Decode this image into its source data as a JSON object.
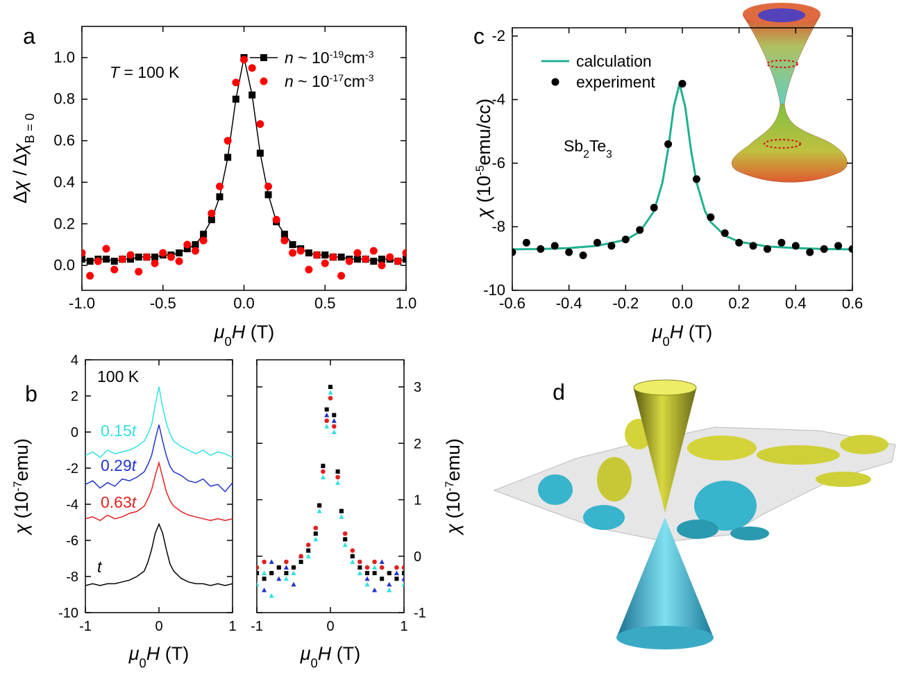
{
  "chart_data": [
    {
      "type": "scatter",
      "panel_label": "a",
      "x": [
        -1,
        -0.95,
        -0.9,
        -0.85,
        -0.8,
        -0.75,
        -0.7,
        -0.65,
        -0.6,
        -0.55,
        -0.5,
        -0.45,
        -0.4,
        -0.35,
        -0.3,
        -0.25,
        -0.2,
        -0.15,
        -0.1,
        -0.05,
        0,
        0.05,
        0.1,
        0.15,
        0.2,
        0.25,
        0.3,
        0.35,
        0.4,
        0.45,
        0.5,
        0.55,
        0.6,
        0.65,
        0.7,
        0.75,
        0.8,
        0.85,
        0.9,
        0.95,
        1
      ],
      "series": [
        {
          "name": [
            {
              "it": "n"
            },
            " ~ 10",
            {
              "sup": "-19"
            },
            "cm",
            {
              "sup": "-3"
            }
          ],
          "color": "#000000",
          "marker": "square",
          "line": true,
          "values": [
            0.03,
            0.02,
            0.03,
            0.03,
            0.02,
            0.03,
            0.03,
            0.04,
            0.04,
            0.04,
            0.05,
            0.05,
            0.06,
            0.08,
            0.1,
            0.15,
            0.22,
            0.33,
            0.52,
            0.8,
            1.0,
            0.82,
            0.54,
            0.34,
            0.21,
            0.15,
            0.1,
            0.08,
            0.06,
            0.05,
            0.05,
            0.04,
            0.04,
            0.03,
            0.03,
            0.03,
            0.02,
            0.03,
            0.03,
            0.02,
            0.03
          ]
        },
        {
          "name": [
            {
              "it": "n"
            },
            " ~ 10",
            {
              "sup": "-17"
            },
            "cm",
            {
              "sup": "-3"
            }
          ],
          "color": "#ff0000",
          "marker": "circle",
          "line": false,
          "values": [
            0.06,
            -0.05,
            0.02,
            0.08,
            -0.02,
            0.03,
            0.05,
            -0.03,
            0.04,
            0.01,
            0.06,
            0.04,
            0.02,
            0.1,
            0.07,
            0.12,
            0.25,
            0.38,
            0.6,
            0.88,
            0.99,
            0.95,
            0.68,
            0.38,
            0.22,
            0.12,
            0.06,
            0.07,
            -0.02,
            0.05,
            0.01,
            0.04,
            -0.05,
            0.02,
            0.06,
            0.03,
            0.07,
            0.0,
            0.04,
            0.02,
            0.06
          ]
        }
      ],
      "xlim": [
        -1,
        1
      ],
      "ylim": [
        -0.12,
        1.15
      ],
      "xticks": [
        {
          "value": -1,
          "label": "-1.0"
        },
        -0.5,
        {
          "value": 0,
          "label": "0.0"
        },
        0.5,
        {
          "value": 1,
          "label": "1.0"
        }
      ],
      "yticks": [
        {
          "value": 0,
          "label": "0.0"
        },
        0.2,
        0.4,
        0.6,
        0.8,
        {
          "value": 1,
          "label": "1.0"
        }
      ],
      "x_label": [
        {
          "it": "μ"
        },
        {
          "sub": "0"
        },
        {
          "it": "H"
        },
        " (T)"
      ],
      "y_label": [
        "Δ",
        {
          "it": "χ"
        },
        " / Δ",
        {
          "it": "χ"
        },
        {
          "sub": "B = 0"
        }
      ],
      "annotation": [
        {
          "it": "T"
        },
        " = 100 K"
      ],
      "legend": "upper right"
    },
    {
      "type": "line",
      "panel_label": "b",
      "x": [
        -1,
        -0.9,
        -0.8,
        -0.7,
        -0.6,
        -0.5,
        -0.4,
        -0.3,
        -0.2,
        -0.15,
        -0.1,
        -0.05,
        0,
        0.05,
        0.1,
        0.15,
        0.2,
        0.3,
        0.4,
        0.5,
        0.6,
        0.7,
        0.8,
        0.9,
        1
      ],
      "series": [
        {
          "name": [
            "0.15",
            {
              "it": "t"
            }
          ],
          "color": "#33e0e0",
          "line": true,
          "values": [
            -1.3,
            -1.1,
            -1.4,
            -1.0,
            -1.2,
            -1.1,
            -1.0,
            -0.8,
            -0.5,
            -0.1,
            0.4,
            1.5,
            2.5,
            1.4,
            0.5,
            -0.1,
            -0.5,
            -0.8,
            -1.0,
            -1.2,
            -1.0,
            -1.3,
            -1.1,
            -1.2,
            -1.4
          ]
        },
        {
          "name": [
            "0.29",
            {
              "it": "t"
            }
          ],
          "color": "#2233cc",
          "line": true,
          "values": [
            -2.9,
            -2.7,
            -3.1,
            -2.8,
            -3.0,
            -2.6,
            -2.7,
            -2.5,
            -2.2,
            -1.8,
            -1.3,
            -0.4,
            0.4,
            -0.5,
            -1.3,
            -1.9,
            -2.2,
            -2.4,
            -2.7,
            -2.8,
            -2.6,
            -3.0,
            -2.9,
            -3.3,
            -2.8
          ]
        },
        {
          "name": [
            "0.63",
            {
              "it": "t"
            }
          ],
          "color": "#e02020",
          "line": true,
          "values": [
            -4.8,
            -4.7,
            -4.9,
            -4.6,
            -4.8,
            -4.7,
            -4.5,
            -4.4,
            -4.1,
            -3.7,
            -3.2,
            -2.4,
            -1.7,
            -2.5,
            -3.3,
            -3.8,
            -4.1,
            -4.4,
            -4.6,
            -4.7,
            -4.8,
            -4.9,
            -4.8,
            -4.9,
            -4.8
          ]
        },
        {
          "name": [
            {
              "it": "t"
            }
          ],
          "color": "#000000",
          "line": true,
          "values": [
            -8.5,
            -8.4,
            -8.5,
            -8.4,
            -8.4,
            -8.3,
            -8.2,
            -8.0,
            -7.7,
            -7.2,
            -6.5,
            -5.6,
            -5.1,
            -5.6,
            -6.5,
            -7.3,
            -7.7,
            -8.1,
            -8.3,
            -8.4,
            -8.4,
            -8.5,
            -8.4,
            -8.5,
            -8.4
          ]
        }
      ],
      "xlim": [
        -1,
        1
      ],
      "ylim": [
        -10,
        4
      ],
      "xticks": [
        -1,
        0,
        1
      ],
      "yticks": [
        -10,
        -8,
        -6,
        -4,
        -2,
        0,
        2,
        4
      ],
      "x_label": [
        {
          "it": "μ"
        },
        {
          "sub": "0"
        },
        {
          "it": "H"
        },
        " (T)"
      ],
      "y_label": [
        {
          "it": "χ"
        },
        " (10",
        {
          "sup": "-7"
        },
        "emu)"
      ],
      "annotation": [
        "100 K"
      ]
    },
    {
      "type": "scatter",
      "x": [
        -1,
        -0.9,
        -0.8,
        -0.7,
        -0.6,
        -0.5,
        -0.4,
        -0.3,
        -0.2,
        -0.15,
        -0.1,
        -0.05,
        0,
        0.05,
        0.1,
        0.15,
        0.2,
        0.3,
        0.4,
        0.5,
        0.6,
        0.7,
        0.8,
        0.9,
        1
      ],
      "series": [
        {
          "color": "#33e0e0",
          "marker": "triangle",
          "line": false,
          "values": [
            -0.5,
            -0.3,
            -0.7,
            -0.2,
            -0.4,
            -0.3,
            -0.1,
            0.0,
            0.3,
            0.8,
            1.4,
            2.3,
            2.9,
            2.2,
            1.3,
            0.7,
            0.2,
            -0.1,
            -0.3,
            -0.5,
            -0.2,
            -0.4,
            -0.6,
            -0.3,
            -0.5
          ]
        },
        {
          "color": "#2233cc",
          "marker": "triangle",
          "line": false,
          "values": [
            -0.3,
            -0.6,
            -0.1,
            -0.4,
            -0.2,
            -0.5,
            0.0,
            0.1,
            0.4,
            0.9,
            1.6,
            2.5,
            3.0,
            2.4,
            1.5,
            0.8,
            0.3,
            0.0,
            -0.2,
            -0.4,
            -0.6,
            -0.1,
            -0.5,
            -0.3,
            -0.4
          ]
        },
        {
          "color": "#e02020",
          "marker": "circle",
          "line": false,
          "values": [
            -0.2,
            -0.1,
            -0.3,
            -0.2,
            -0.1,
            -0.2,
            0.0,
            0.2,
            0.5,
            0.9,
            1.5,
            2.4,
            2.8,
            2.3,
            1.4,
            0.8,
            0.4,
            0.1,
            -0.1,
            -0.2,
            -0.1,
            -0.2,
            -0.3,
            -0.2,
            -0.2
          ]
        },
        {
          "color": "#000000",
          "marker": "square",
          "line": false,
          "values": [
            -0.3,
            -0.4,
            -0.3,
            -0.2,
            -0.3,
            -0.2,
            -0.1,
            0.1,
            0.4,
            0.9,
            1.6,
            2.6,
            3.0,
            2.5,
            1.5,
            0.8,
            0.3,
            0.0,
            -0.2,
            -0.3,
            -0.3,
            -0.4,
            -0.3,
            -0.4,
            -0.3
          ]
        }
      ],
      "xlim": [
        -1,
        1
      ],
      "ylim": [
        -1,
        3.48
      ],
      "xticks": [
        -1,
        0,
        1
      ],
      "yticks": [
        -1,
        0,
        1,
        2,
        3
      ],
      "y_axis_side": "right",
      "x_label": [
        {
          "it": "μ"
        },
        {
          "sub": "0"
        },
        {
          "it": "H"
        },
        " (T)"
      ],
      "y_label": [
        {
          "it": "χ"
        },
        " (10",
        {
          "sup": "-7"
        },
        "emu)"
      ]
    },
    {
      "type": "scatter",
      "panel_label": "c",
      "series": [
        {
          "name": "calculation",
          "color": "#20b090",
          "line": true,
          "marker": "none",
          "x": [
            -0.6,
            -0.5,
            -0.4,
            -0.3,
            -0.2,
            -0.15,
            -0.1,
            -0.07,
            -0.05,
            -0.03,
            -0.01,
            0.01,
            0.03,
            0.05,
            0.08,
            0.1,
            0.15,
            0.2,
            0.3,
            0.4,
            0.5,
            0.6
          ],
          "values": [
            -8.71,
            -8.7,
            -8.67,
            -8.6,
            -8.41,
            -8.16,
            -7.51,
            -6.6,
            -5.55,
            -4.22,
            -3.5,
            -4.22,
            -5.55,
            -6.6,
            -7.51,
            -7.85,
            -8.28,
            -8.47,
            -8.62,
            -8.67,
            -8.7,
            -8.71
          ]
        },
        {
          "name": "experiment",
          "color": "#000000",
          "line": false,
          "marker": "circle",
          "x": [
            -0.6,
            -0.55,
            -0.5,
            -0.45,
            -0.4,
            -0.35,
            -0.3,
            -0.25,
            -0.2,
            -0.15,
            -0.1,
            -0.05,
            0,
            0.05,
            0.1,
            0.15,
            0.2,
            0.25,
            0.3,
            0.35,
            0.4,
            0.45,
            0.5,
            0.55,
            0.6
          ],
          "values": [
            -8.8,
            -8.5,
            -8.7,
            -8.6,
            -8.8,
            -8.9,
            -8.5,
            -8.6,
            -8.4,
            -8.1,
            -7.4,
            -5.4,
            -3.5,
            -6.5,
            -7.7,
            -8.2,
            -8.5,
            -8.6,
            -8.7,
            -8.5,
            -8.6,
            -8.8,
            -8.7,
            -8.6,
            -8.7
          ]
        }
      ],
      "xlim": [
        -0.6,
        0.6
      ],
      "ylim": [
        -10,
        -1.74
      ],
      "xticks": [
        -0.6,
        -0.4,
        -0.2,
        {
          "value": 0,
          "label": "0.0"
        },
        0.2,
        0.4,
        0.6
      ],
      "yticks": [
        -10,
        -8,
        -6,
        -4,
        -2
      ],
      "x_label": [
        {
          "it": "μ"
        },
        {
          "sub": "0"
        },
        {
          "it": "H"
        },
        " (T)"
      ],
      "y_label": [
        {
          "it": "χ"
        },
        " (10",
        {
          "sup": "-5"
        },
        "emu/cc)"
      ],
      "annotation": [
        "Sb",
        {
          "sub": "2"
        },
        "Te",
        {
          "sub": "3"
        }
      ],
      "legend": "upper left"
    }
  ],
  "illustration": {
    "label": "d"
  }
}
